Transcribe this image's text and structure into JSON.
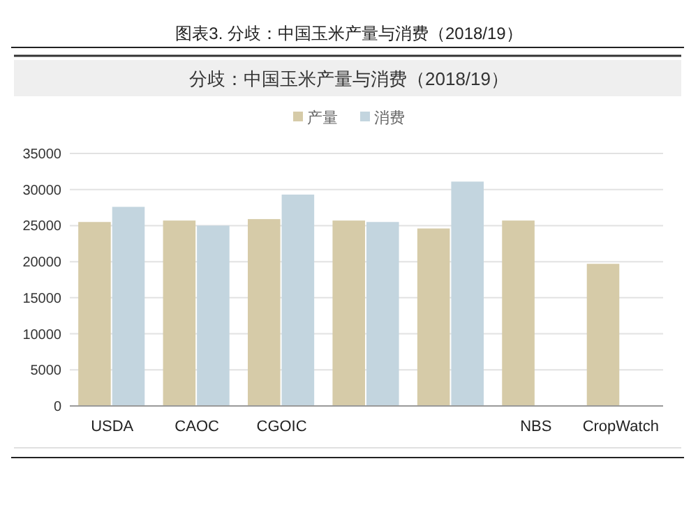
{
  "chart_data": {
    "type": "bar",
    "title": "图表3.   分歧：中国玉米产量与消费（2018/19）",
    "subtitle": "分歧：中国玉米产量与消费（2018/19）",
    "categories": [
      "USDA",
      "CAOC",
      "CGOIC",
      null,
      null,
      "NBS",
      "CropWatch"
    ],
    "series": [
      {
        "name": "产量",
        "color": "#d6cba8",
        "values": [
          25500,
          25700,
          25900,
          25700,
          24600,
          25700,
          19700
        ]
      },
      {
        "name": "消费",
        "color": "#c3d5df",
        "values": [
          27600,
          25000,
          29300,
          25500,
          31100,
          null,
          null
        ]
      }
    ],
    "ylim": [
      0,
      35000
    ],
    "yticks": [
      0,
      5000,
      10000,
      15000,
      20000,
      25000,
      30000,
      35000
    ],
    "grid": "y",
    "legend": "top"
  }
}
